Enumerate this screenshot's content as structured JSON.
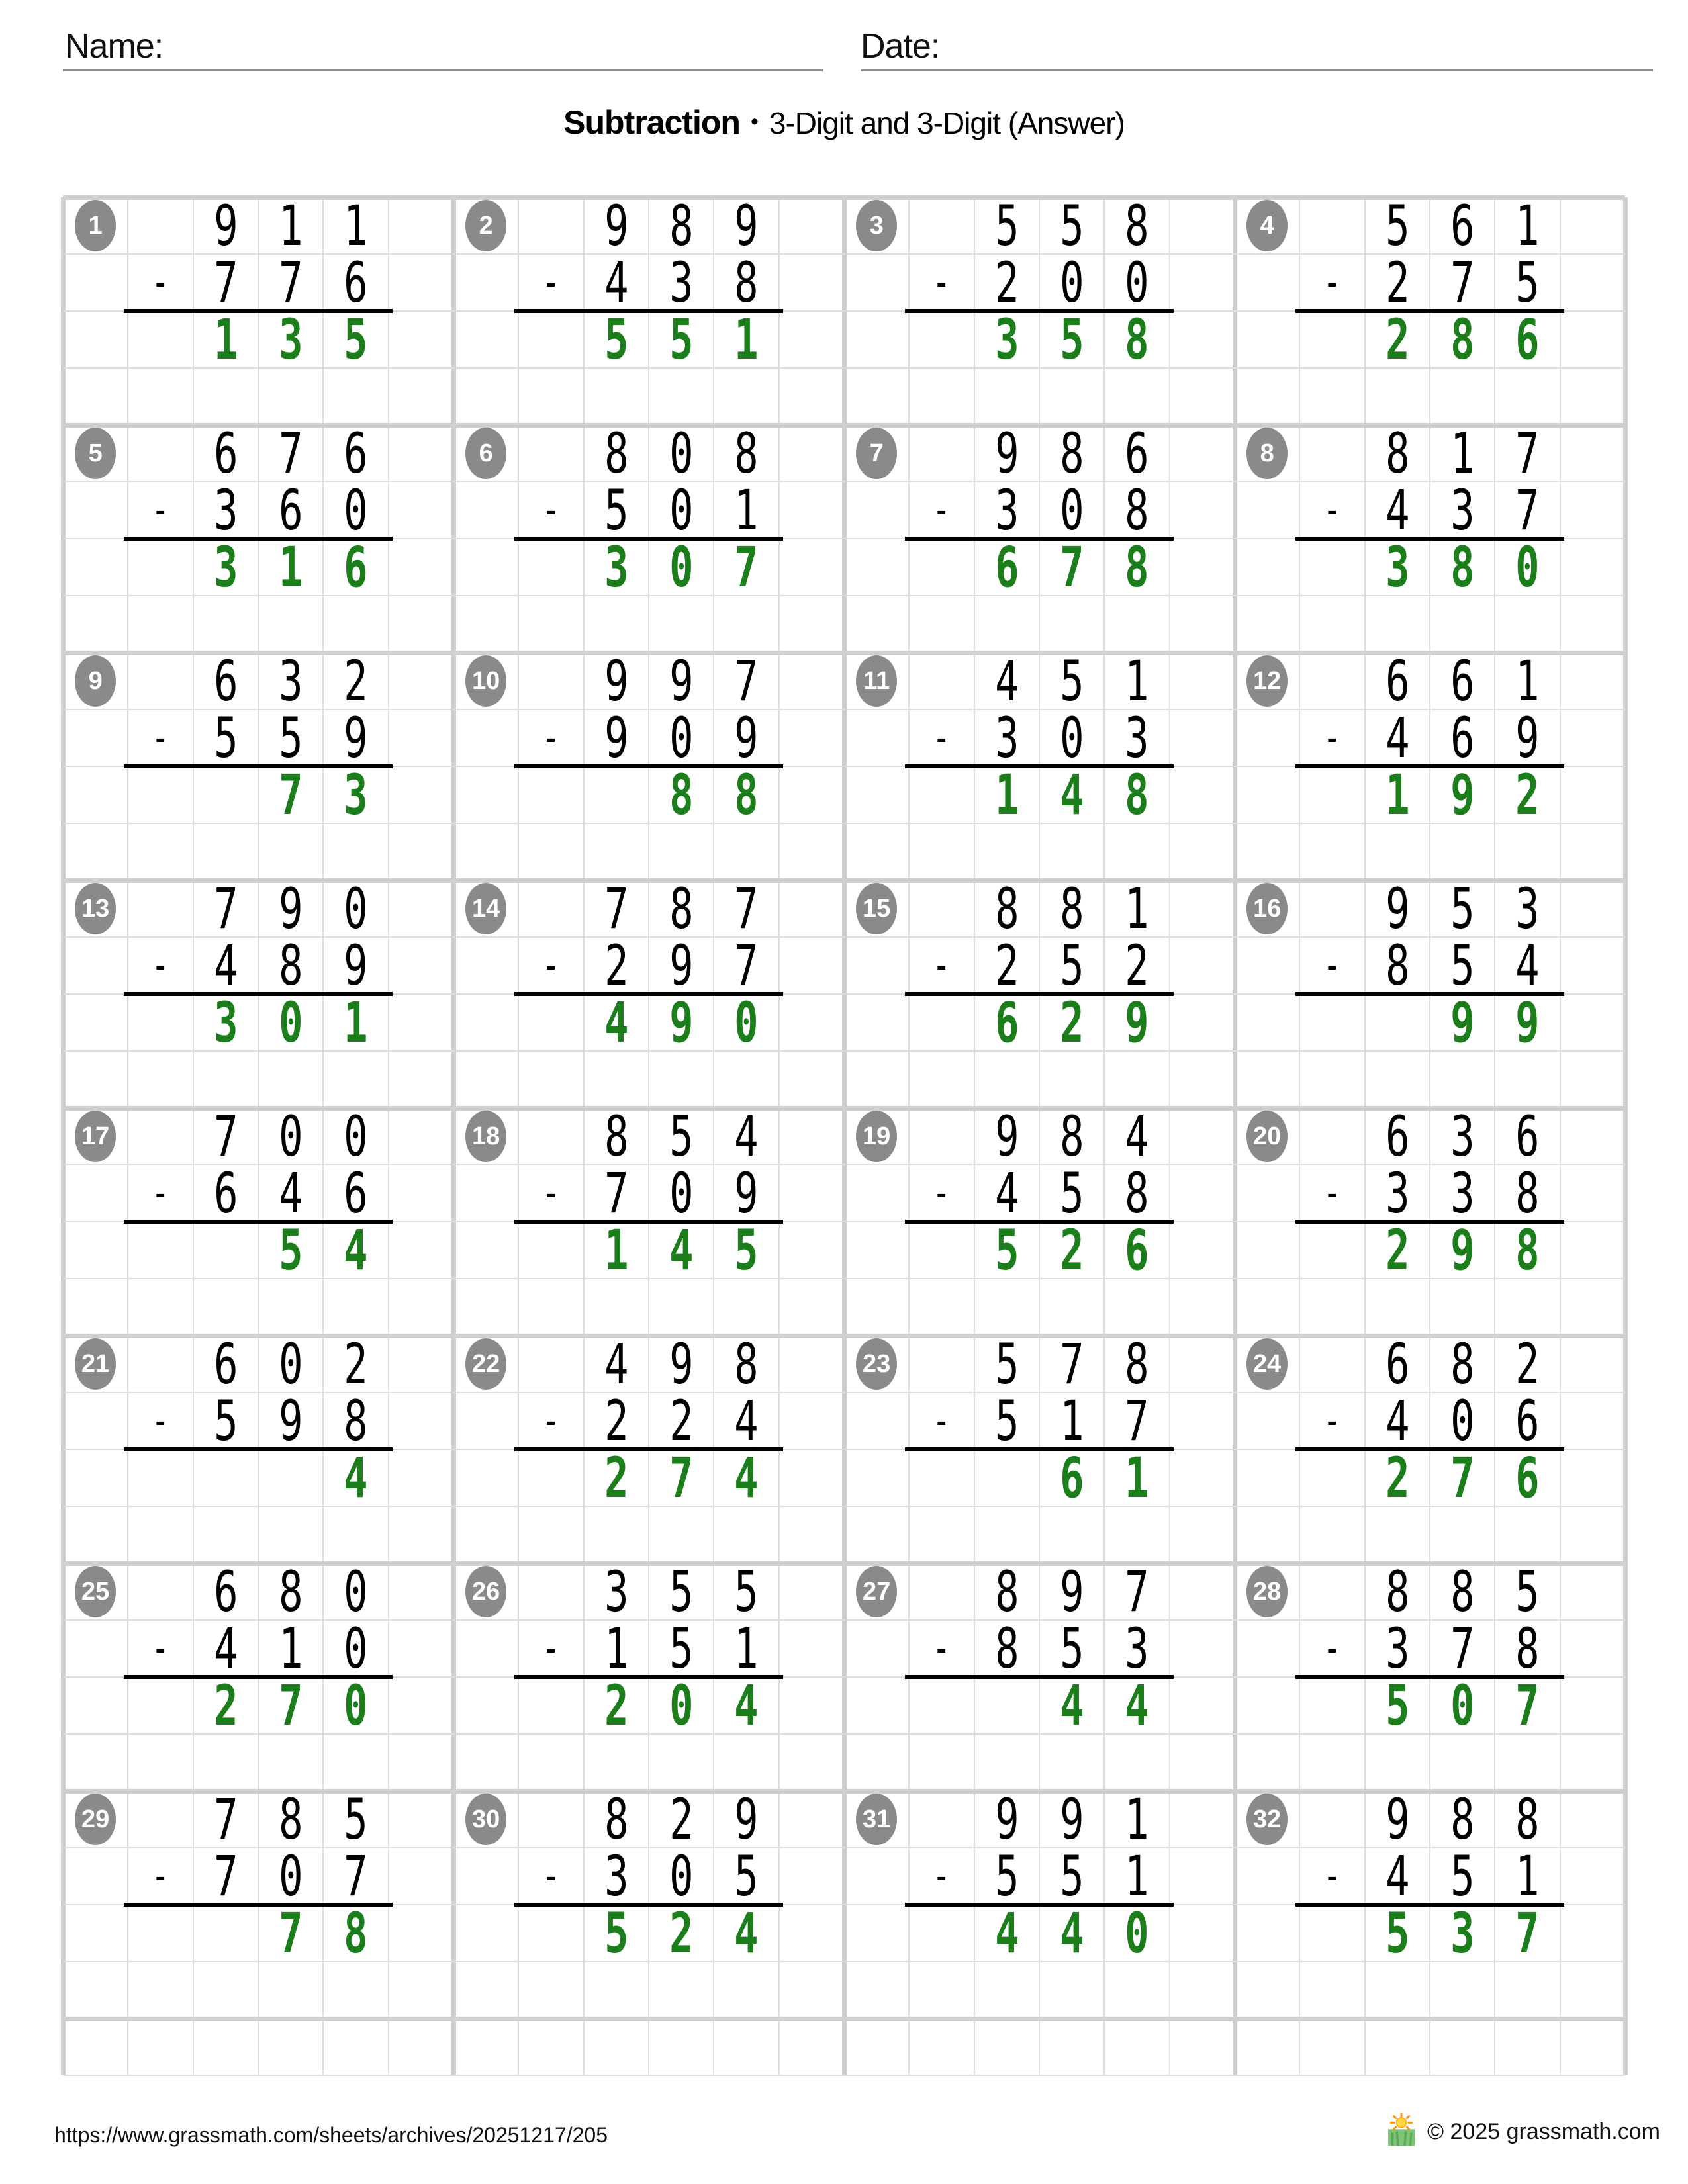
{
  "header": {
    "name_label": "Name:",
    "date_label": "Date:"
  },
  "title": {
    "main": "Subtraction",
    "separator": "•",
    "subtitle": "3-Digit and 3-Digit (Answer)"
  },
  "operator": "-",
  "colors": {
    "answer_green": "#1b7e1b",
    "badge_gray": "#8a8a8a",
    "grid_line_thin": "#dedede",
    "grid_line_thick": "#cfcfcf",
    "answer_line": "#000000",
    "underline_gray": "#8f8f8f"
  },
  "problems": [
    {
      "num": 1,
      "minuend": "911",
      "subtrahend": "776",
      "answer": "135"
    },
    {
      "num": 2,
      "minuend": "989",
      "subtrahend": "438",
      "answer": "551"
    },
    {
      "num": 3,
      "minuend": "558",
      "subtrahend": "200",
      "answer": "358"
    },
    {
      "num": 4,
      "minuend": "561",
      "subtrahend": "275",
      "answer": "286"
    },
    {
      "num": 5,
      "minuend": "676",
      "subtrahend": "360",
      "answer": "316"
    },
    {
      "num": 6,
      "minuend": "808",
      "subtrahend": "501",
      "answer": "307"
    },
    {
      "num": 7,
      "minuend": "986",
      "subtrahend": "308",
      "answer": "678"
    },
    {
      "num": 8,
      "minuend": "817",
      "subtrahend": "437",
      "answer": "380"
    },
    {
      "num": 9,
      "minuend": "632",
      "subtrahend": "559",
      "answer": "73"
    },
    {
      "num": 10,
      "minuend": "997",
      "subtrahend": "909",
      "answer": "88"
    },
    {
      "num": 11,
      "minuend": "451",
      "subtrahend": "303",
      "answer": "148"
    },
    {
      "num": 12,
      "minuend": "661",
      "subtrahend": "469",
      "answer": "192"
    },
    {
      "num": 13,
      "minuend": "790",
      "subtrahend": "489",
      "answer": "301"
    },
    {
      "num": 14,
      "minuend": "787",
      "subtrahend": "297",
      "answer": "490"
    },
    {
      "num": 15,
      "minuend": "881",
      "subtrahend": "252",
      "answer": "629"
    },
    {
      "num": 16,
      "minuend": "953",
      "subtrahend": "854",
      "answer": "99"
    },
    {
      "num": 17,
      "minuend": "700",
      "subtrahend": "646",
      "answer": "54"
    },
    {
      "num": 18,
      "minuend": "854",
      "subtrahend": "709",
      "answer": "145"
    },
    {
      "num": 19,
      "minuend": "984",
      "subtrahend": "458",
      "answer": "526"
    },
    {
      "num": 20,
      "minuend": "636",
      "subtrahend": "338",
      "answer": "298"
    },
    {
      "num": 21,
      "minuend": "602",
      "subtrahend": "598",
      "answer": "4"
    },
    {
      "num": 22,
      "minuend": "498",
      "subtrahend": "224",
      "answer": "274"
    },
    {
      "num": 23,
      "minuend": "578",
      "subtrahend": "517",
      "answer": "61"
    },
    {
      "num": 24,
      "minuend": "682",
      "subtrahend": "406",
      "answer": "276"
    },
    {
      "num": 25,
      "minuend": "680",
      "subtrahend": "410",
      "answer": "270"
    },
    {
      "num": 26,
      "minuend": "355",
      "subtrahend": "151",
      "answer": "204"
    },
    {
      "num": 27,
      "minuend": "897",
      "subtrahend": "853",
      "answer": "44"
    },
    {
      "num": 28,
      "minuend": "885",
      "subtrahend": "378",
      "answer": "507"
    },
    {
      "num": 29,
      "minuend": "785",
      "subtrahend": "707",
      "answer": "78"
    },
    {
      "num": 30,
      "minuend": "829",
      "subtrahend": "305",
      "answer": "524"
    },
    {
      "num": 31,
      "minuend": "991",
      "subtrahend": "551",
      "answer": "440"
    },
    {
      "num": 32,
      "minuend": "988",
      "subtrahend": "451",
      "answer": "537"
    }
  ],
  "footer": {
    "url": "https://www.grassmath.com/sheets/archives/20251217/205",
    "copyright": "© 2025 grassmath.com",
    "logo": "sun-over-grass-logo"
  }
}
